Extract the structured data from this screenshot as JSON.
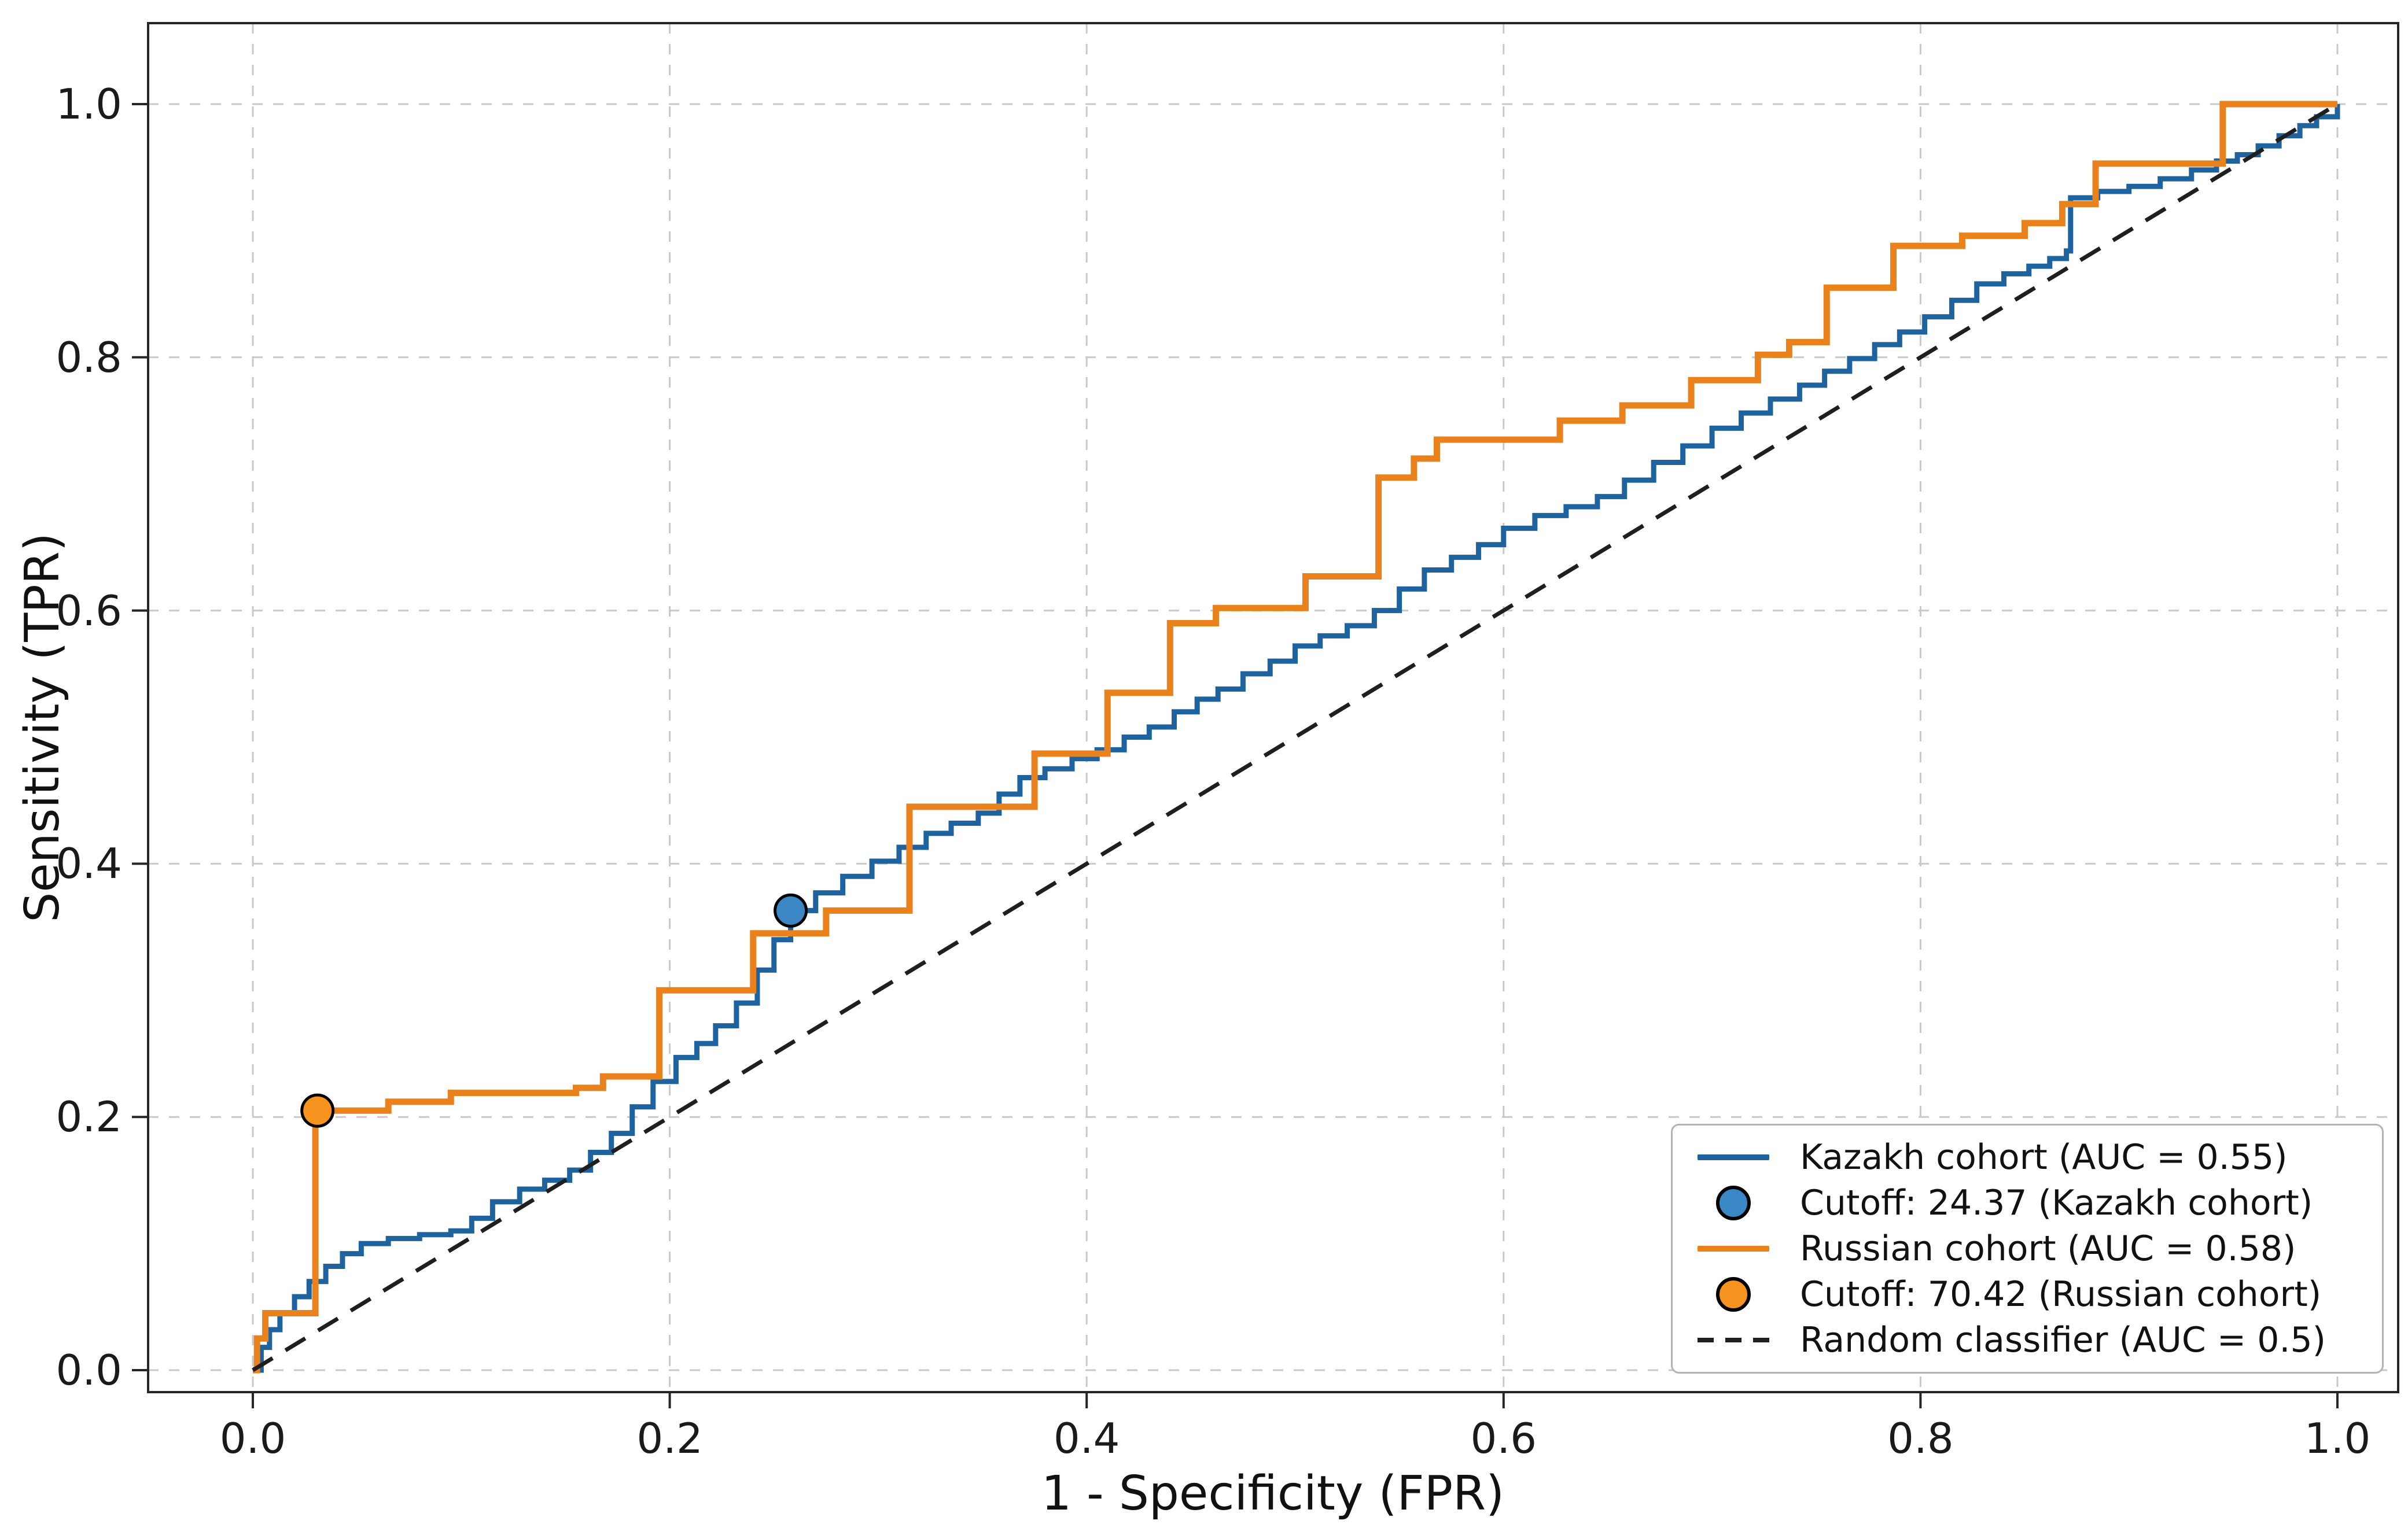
{
  "chart_data": {
    "type": "line",
    "subtype": "roc-curves",
    "title": "",
    "xlabel": "1 - Specificity (FPR)",
    "ylabel": "Sensitivity (TPR)",
    "x_ticks": [
      "0.0",
      "0.2",
      "0.4",
      "0.6",
      "0.8",
      "1.0"
    ],
    "y_ticks": [
      "0.0",
      "0.2",
      "0.4",
      "0.6",
      "0.8",
      "1.0"
    ],
    "x_tick_values": [
      0,
      0.2,
      0.4,
      0.6,
      0.8,
      1.0
    ],
    "y_tick_values": [
      0,
      0.2,
      0.4,
      0.6,
      0.8,
      1.0
    ],
    "xlim": [
      0,
      1
    ],
    "ylim": [
      0,
      1
    ],
    "grid": true,
    "legend_position": "lower right",
    "axis_color": "#262626",
    "grid_color": "#c9c9c9",
    "text_color": "#1a1a1a",
    "series": [
      {
        "name": "Kazakh cohort (AUC = 0.55)",
        "auc": 0.55,
        "type": "roc-step",
        "color": "#1e639e",
        "linewidth": 9,
        "points": [
          [
            0,
            0
          ],
          [
            0.004,
            0.018
          ],
          [
            0.008,
            0.032
          ],
          [
            0.013,
            0.045
          ],
          [
            0.02,
            0.058
          ],
          [
            0.027,
            0.07
          ],
          [
            0.035,
            0.082
          ],
          [
            0.043,
            0.092
          ],
          [
            0.052,
            0.1
          ],
          [
            0.065,
            0.104
          ],
          [
            0.08,
            0.107
          ],
          [
            0.095,
            0.11
          ],
          [
            0.105,
            0.12
          ],
          [
            0.115,
            0.133
          ],
          [
            0.128,
            0.143
          ],
          [
            0.14,
            0.15
          ],
          [
            0.152,
            0.158
          ],
          [
            0.162,
            0.172
          ],
          [
            0.172,
            0.187
          ],
          [
            0.182,
            0.208
          ],
          [
            0.192,
            0.228
          ],
          [
            0.203,
            0.247
          ],
          [
            0.213,
            0.258
          ],
          [
            0.222,
            0.272
          ],
          [
            0.232,
            0.29
          ],
          [
            0.242,
            0.316
          ],
          [
            0.25,
            0.34
          ],
          [
            0.258,
            0.363
          ],
          [
            0.27,
            0.377
          ],
          [
            0.283,
            0.39
          ],
          [
            0.297,
            0.402
          ],
          [
            0.31,
            0.413
          ],
          [
            0.323,
            0.424
          ],
          [
            0.335,
            0.432
          ],
          [
            0.348,
            0.44
          ],
          [
            0.358,
            0.455
          ],
          [
            0.368,
            0.468
          ],
          [
            0.38,
            0.475
          ],
          [
            0.393,
            0.483
          ],
          [
            0.405,
            0.49
          ],
          [
            0.418,
            0.5
          ],
          [
            0.43,
            0.508
          ],
          [
            0.442,
            0.52
          ],
          [
            0.453,
            0.53
          ],
          [
            0.463,
            0.538
          ],
          [
            0.475,
            0.55
          ],
          [
            0.488,
            0.56
          ],
          [
            0.5,
            0.572
          ],
          [
            0.512,
            0.58
          ],
          [
            0.525,
            0.588
          ],
          [
            0.538,
            0.6
          ],
          [
            0.55,
            0.617
          ],
          [
            0.562,
            0.632
          ],
          [
            0.575,
            0.642
          ],
          [
            0.588,
            0.652
          ],
          [
            0.6,
            0.665
          ],
          [
            0.615,
            0.675
          ],
          [
            0.63,
            0.682
          ],
          [
            0.645,
            0.69
          ],
          [
            0.658,
            0.703
          ],
          [
            0.672,
            0.717
          ],
          [
            0.686,
            0.73
          ],
          [
            0.7,
            0.744
          ],
          [
            0.714,
            0.756
          ],
          [
            0.728,
            0.767
          ],
          [
            0.742,
            0.778
          ],
          [
            0.754,
            0.789
          ],
          [
            0.766,
            0.799
          ],
          [
            0.778,
            0.81
          ],
          [
            0.79,
            0.82
          ],
          [
            0.802,
            0.832
          ],
          [
            0.815,
            0.845
          ],
          [
            0.827,
            0.858
          ],
          [
            0.84,
            0.866
          ],
          [
            0.852,
            0.872
          ],
          [
            0.862,
            0.878
          ],
          [
            0.87,
            0.884
          ],
          [
            0.872,
            0.926
          ],
          [
            0.885,
            0.931
          ],
          [
            0.9,
            0.935
          ],
          [
            0.915,
            0.941
          ],
          [
            0.93,
            0.948
          ],
          [
            0.942,
            0.955
          ],
          [
            0.952,
            0.96
          ],
          [
            0.962,
            0.967
          ],
          [
            0.972,
            0.975
          ],
          [
            0.982,
            0.983
          ],
          [
            0.99,
            0.99
          ],
          [
            1,
            1
          ]
        ]
      },
      {
        "name": "Russian cohort (AUC = 0.58)",
        "auc": 0.58,
        "type": "roc-step",
        "color": "#e9811d",
        "linewidth": 11,
        "points": [
          [
            0,
            0
          ],
          [
            0.002,
            0.025
          ],
          [
            0.006,
            0.045
          ],
          [
            0.03,
            0.205
          ],
          [
            0.065,
            0.212
          ],
          [
            0.095,
            0.219
          ],
          [
            0.155,
            0.223
          ],
          [
            0.168,
            0.232
          ],
          [
            0.195,
            0.3
          ],
          [
            0.24,
            0.345
          ],
          [
            0.275,
            0.363
          ],
          [
            0.315,
            0.445
          ],
          [
            0.375,
            0.487
          ],
          [
            0.41,
            0.535
          ],
          [
            0.44,
            0.59
          ],
          [
            0.462,
            0.602
          ],
          [
            0.505,
            0.627
          ],
          [
            0.54,
            0.705
          ],
          [
            0.557,
            0.72
          ],
          [
            0.568,
            0.735
          ],
          [
            0.627,
            0.75
          ],
          [
            0.657,
            0.762
          ],
          [
            0.69,
            0.782
          ],
          [
            0.722,
            0.802
          ],
          [
            0.737,
            0.812
          ],
          [
            0.755,
            0.855
          ],
          [
            0.787,
            0.888
          ],
          [
            0.82,
            0.896
          ],
          [
            0.85,
            0.906
          ],
          [
            0.868,
            0.921
          ],
          [
            0.884,
            0.953
          ],
          [
            0.945,
            1
          ],
          [
            1,
            1
          ]
        ]
      },
      {
        "name": "Random classifier (AUC = 0.5)",
        "auc": 0.5,
        "type": "line",
        "style": "dashed",
        "color": "#1f1f1f",
        "linewidth": 7,
        "points": [
          [
            0,
            0
          ],
          [
            1,
            1
          ]
        ]
      }
    ],
    "cutoff_markers": [
      {
        "label": "Cutoff: 24.37 (Kazakh cohort)",
        "value": 24.37,
        "x": 0.258,
        "y": 0.363,
        "fill": "#3b87c6",
        "edge": "#000000",
        "radius": 27
      },
      {
        "label": "Cutoff: 70.42 (Russian cohort)",
        "value": 70.42,
        "x": 0.031,
        "y": 0.205,
        "fill": "#f79420",
        "edge": "#000000",
        "radius": 27
      }
    ],
    "legend": {
      "items": [
        {
          "glyph": "line",
          "color": "#1e639e",
          "label": "Kazakh cohort (AUC = 0.55)"
        },
        {
          "glyph": "circle",
          "color": "#3b87c6",
          "label": "Cutoff: 24.37 (Kazakh cohort)"
        },
        {
          "glyph": "line",
          "color": "#e9811d",
          "label": "Russian cohort (AUC = 0.58)"
        },
        {
          "glyph": "circle",
          "color": "#f79420",
          "label": "Cutoff: 70.42 (Russian cohort)"
        },
        {
          "glyph": "dashed-line",
          "color": "#1f1f1f",
          "label": "Random classifier (AUC = 0.5)"
        }
      ]
    }
  }
}
